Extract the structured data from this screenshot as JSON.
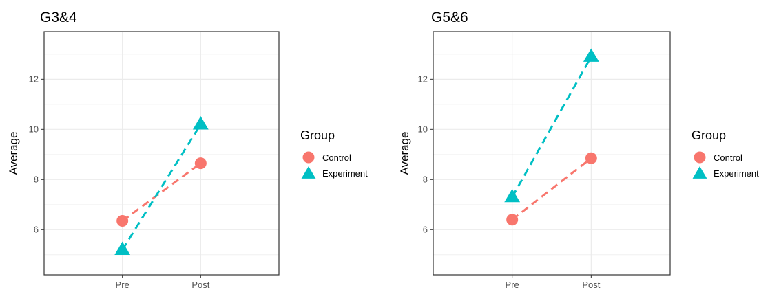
{
  "chart_data": [
    {
      "type": "line",
      "title": "G3&4",
      "xlabel": "",
      "ylabel": "Average",
      "categories": [
        "Pre",
        "Post"
      ],
      "ylim": [
        4.2,
        13.9
      ],
      "yticks": [
        6,
        8,
        10,
        12
      ],
      "grid": true,
      "legend": {
        "title": "Group",
        "position": "right"
      },
      "series": [
        {
          "name": "Control",
          "values": [
            6.35,
            8.65
          ],
          "color": "#F8766D",
          "marker": "circle",
          "line": "dashed"
        },
        {
          "name": "Experiment",
          "values": [
            5.2,
            10.2
          ],
          "color": "#00BFC4",
          "marker": "triangle",
          "line": "dashed"
        }
      ]
    },
    {
      "type": "line",
      "title": "G5&6",
      "xlabel": "",
      "ylabel": "Average",
      "categories": [
        "Pre",
        "Post"
      ],
      "ylim": [
        4.2,
        13.9
      ],
      "yticks": [
        6,
        8,
        10,
        12
      ],
      "grid": true,
      "legend": {
        "title": "Group",
        "position": "right"
      },
      "series": [
        {
          "name": "Control",
          "values": [
            6.4,
            8.85
          ],
          "color": "#F8766D",
          "marker": "circle",
          "line": "dashed"
        },
        {
          "name": "Experiment",
          "values": [
            7.3,
            12.9
          ],
          "color": "#00BFC4",
          "marker": "triangle",
          "line": "dashed"
        }
      ]
    }
  ]
}
